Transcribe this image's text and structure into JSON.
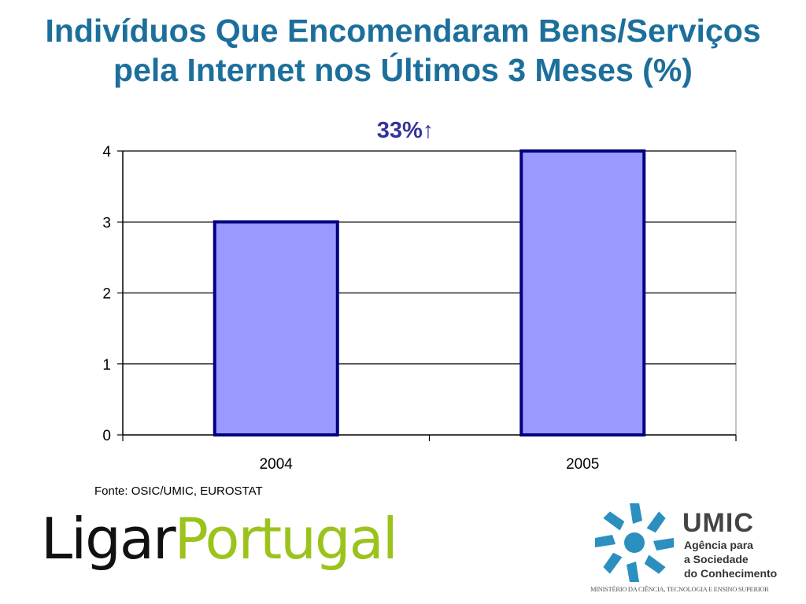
{
  "title": {
    "line1": "Indivíduos Que Encomendaram Bens/Serviços",
    "line2": "pela Internet nos Últimos 3 Meses (%)"
  },
  "annotation": "33%",
  "annotation_icon": "up-arrow-icon",
  "source": "Fonte: OSIC/UMIC, EUROSTAT",
  "logo_ligar": {
    "part1": "Ligar",
    "part2": "Portugal"
  },
  "logo_umic": {
    "name": "UMIC",
    "line1": "Agência para",
    "line2": "a Sociedade",
    "line3": "do Conhecimento",
    "ministry": "MINISTÉRIO DA CIÊNCIA, TECNOLOGIA E ENSINO SUPERIOR"
  },
  "colors": {
    "title": "#1c6f9b",
    "bar_fill": "#9999ff",
    "bar_stroke": "#000080",
    "annotation": "#33339a",
    "ligar_green": "#9bc31c",
    "umic_blue": "#2b8fbf"
  },
  "chart_data": {
    "type": "bar",
    "categories": [
      "2004",
      "2005"
    ],
    "values": [
      3,
      4
    ],
    "ylim": [
      0,
      4
    ],
    "yticks": [
      "0",
      "1",
      "2",
      "3",
      "4"
    ],
    "grid": true,
    "legend": "none"
  }
}
